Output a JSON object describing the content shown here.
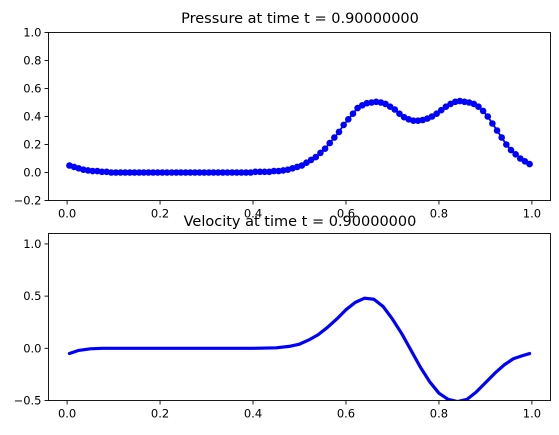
{
  "chart_data": [
    {
      "type": "scatter",
      "title": "Pressure at time t =      0.90000000",
      "xlabel": "",
      "ylabel": "",
      "xlim": [
        -0.04,
        1.04
      ],
      "ylim": [
        -0.2,
        1.0
      ],
      "xticks": [
        0.0,
        0.2,
        0.4,
        0.6,
        0.8,
        1.0
      ],
      "xtick_labels": [
        "0.0",
        "0.2",
        "0.4",
        "0.6",
        "0.8",
        "1.0"
      ],
      "yticks": [
        -0.2,
        0.0,
        0.2,
        0.4,
        0.6,
        0.8,
        1.0
      ],
      "ytick_labels": [
        "−0.2",
        "0.0",
        "0.2",
        "0.4",
        "0.6",
        "0.8",
        "1.0"
      ],
      "grid": false,
      "series": [
        {
          "color": "#0000ff",
          "marker": "circle",
          "line": true,
          "x": [
            0.005,
            0.015,
            0.025,
            0.035,
            0.045,
            0.055,
            0.065,
            0.075,
            0.085,
            0.095,
            0.105,
            0.115,
            0.125,
            0.135,
            0.145,
            0.155,
            0.165,
            0.175,
            0.185,
            0.195,
            0.205,
            0.215,
            0.225,
            0.235,
            0.245,
            0.255,
            0.265,
            0.275,
            0.285,
            0.295,
            0.305,
            0.315,
            0.325,
            0.335,
            0.345,
            0.355,
            0.365,
            0.375,
            0.385,
            0.395,
            0.405,
            0.415,
            0.425,
            0.435,
            0.445,
            0.455,
            0.465,
            0.475,
            0.485,
            0.495,
            0.505,
            0.515,
            0.525,
            0.535,
            0.545,
            0.555,
            0.565,
            0.575,
            0.585,
            0.595,
            0.605,
            0.615,
            0.625,
            0.635,
            0.645,
            0.655,
            0.665,
            0.675,
            0.685,
            0.695,
            0.705,
            0.715,
            0.725,
            0.735,
            0.745,
            0.755,
            0.765,
            0.775,
            0.785,
            0.795,
            0.805,
            0.815,
            0.825,
            0.835,
            0.845,
            0.855,
            0.865,
            0.875,
            0.885,
            0.895,
            0.905,
            0.915,
            0.925,
            0.935,
            0.945,
            0.955,
            0.965,
            0.975,
            0.985,
            0.995
          ],
          "y": [
            0.05,
            0.04,
            0.03,
            0.02,
            0.015,
            0.01,
            0.01,
            0.005,
            0.005,
            0.0,
            0.0,
            0.0,
            0.0,
            0.0,
            0.0,
            0.0,
            0.0,
            0.0,
            0.0,
            0.0,
            0.0,
            0.0,
            0.0,
            0.0,
            0.0,
            0.0,
            0.0,
            0.0,
            0.0,
            0.0,
            0.0,
            0.0,
            0.0,
            0.0,
            0.0,
            0.0,
            0.0,
            0.0,
            0.0,
            0.0,
            0.005,
            0.005,
            0.005,
            0.005,
            0.01,
            0.01,
            0.015,
            0.02,
            0.03,
            0.04,
            0.05,
            0.07,
            0.09,
            0.11,
            0.14,
            0.17,
            0.21,
            0.25,
            0.29,
            0.34,
            0.38,
            0.42,
            0.46,
            0.48,
            0.495,
            0.5,
            0.505,
            0.5,
            0.49,
            0.47,
            0.45,
            0.42,
            0.395,
            0.38,
            0.37,
            0.37,
            0.375,
            0.385,
            0.4,
            0.42,
            0.445,
            0.47,
            0.49,
            0.505,
            0.51,
            0.505,
            0.5,
            0.49,
            0.47,
            0.44,
            0.4,
            0.35,
            0.3,
            0.25,
            0.2,
            0.16,
            0.13,
            0.1,
            0.08,
            0.06
          ]
        }
      ]
    },
    {
      "type": "line",
      "title": "Velocity at time t =      0.90000000",
      "xlabel": "",
      "ylabel": "",
      "xlim": [
        -0.04,
        1.04
      ],
      "ylim": [
        -0.5,
        1.1
      ],
      "xticks": [
        0.0,
        0.2,
        0.4,
        0.6,
        0.8,
        1.0
      ],
      "xtick_labels": [
        "0.0",
        "0.2",
        "0.4",
        "0.6",
        "0.8",
        "1.0"
      ],
      "yticks": [
        -0.5,
        0.0,
        0.5,
        1.0
      ],
      "ytick_labels": [
        "−0.5",
        "0.0",
        "0.5",
        "1.0"
      ],
      "grid": false,
      "series": [
        {
          "color": "#0000ff",
          "marker": "none",
          "line": true,
          "x": [
            0.005,
            0.025,
            0.05,
            0.075,
            0.1,
            0.15,
            0.2,
            0.3,
            0.4,
            0.45,
            0.48,
            0.5,
            0.52,
            0.54,
            0.56,
            0.58,
            0.6,
            0.62,
            0.64,
            0.66,
            0.68,
            0.7,
            0.72,
            0.74,
            0.76,
            0.78,
            0.8,
            0.82,
            0.84,
            0.86,
            0.88,
            0.9,
            0.92,
            0.94,
            0.96,
            0.98,
            0.995
          ],
          "y": [
            -0.05,
            -0.02,
            -0.005,
            0.0,
            0.0,
            0.0,
            0.0,
            0.0,
            0.0,
            0.005,
            0.02,
            0.04,
            0.08,
            0.13,
            0.2,
            0.28,
            0.37,
            0.44,
            0.48,
            0.47,
            0.4,
            0.28,
            0.14,
            -0.02,
            -0.18,
            -0.32,
            -0.43,
            -0.49,
            -0.51,
            -0.49,
            -0.42,
            -0.33,
            -0.24,
            -0.16,
            -0.1,
            -0.07,
            -0.05
          ]
        }
      ]
    }
  ]
}
